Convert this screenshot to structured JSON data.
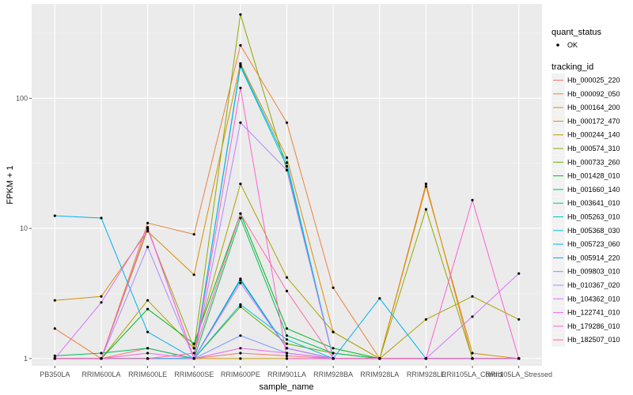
{
  "chart_data": {
    "type": "line",
    "xlabel": "sample_name",
    "ylabel": "FPKM + 1",
    "y_scale": "log10",
    "ylim": [
      0.88,
      530
    ],
    "y_ticks": [
      1,
      10,
      100
    ],
    "y_tick_labels": [
      "1",
      "10",
      "100"
    ],
    "grid": true,
    "legend_position": "right",
    "categories": [
      "PB350LA",
      "RRIM600LA",
      "RRIM600LE",
      "RRIM600SE",
      "RRIM600PE",
      "RRIM901LA",
      "RRIM928BA",
      "RRIM928LA",
      "RRIM928LE",
      "RRII105LA_Control",
      "RRII105LA_Stressed"
    ],
    "shape_legend": {
      "title": "quant_status",
      "items": [
        "OK"
      ]
    },
    "color_legend_title": "tracking_id",
    "series": [
      {
        "name": "Hb_000025_220",
        "color": "#F8766D",
        "values": [
          1.0,
          1.0,
          1.2,
          1.0,
          1.1,
          1.05,
          1.0,
          1.0,
          1.0,
          1.0,
          1.0
        ]
      },
      {
        "name": "Hb_000092_050",
        "color": "#EC8239",
        "values": [
          1.7,
          1.0,
          11.0,
          9.0,
          255,
          65,
          3.5,
          1.0,
          22,
          1.0,
          1.0
        ]
      },
      {
        "name": "Hb_000164_200",
        "color": "#DB8E00",
        "values": [
          2.8,
          3.0,
          9.5,
          4.4,
          185,
          35,
          1.6,
          1.0,
          21,
          1.1,
          1.0
        ]
      },
      {
        "name": "Hb_000172_470",
        "color": "#C79800",
        "values": [
          1.0,
          1.0,
          1.0,
          1.0,
          1.0,
          1.0,
          1.0,
          1.0,
          1.0,
          1.0,
          1.0
        ]
      },
      {
        "name": "Hb_000244_140",
        "color": "#AEA200",
        "values": [
          1.0,
          1.0,
          2.8,
          1.2,
          22,
          4.2,
          1.6,
          1.0,
          2.0,
          3.0,
          2.0
        ]
      },
      {
        "name": "Hb_000574_310",
        "color": "#8FAA00",
        "values": [
          1.0,
          1.0,
          9.8,
          1.2,
          440,
          28,
          1.0,
          1.0,
          14,
          1.0,
          1.0
        ]
      },
      {
        "name": "Hb_000733_260",
        "color": "#64B200",
        "values": [
          1.0,
          1.0,
          1.0,
          1.0,
          2.5,
          1.3,
          1.1,
          1.0,
          1.0,
          1.0,
          1.0
        ]
      },
      {
        "name": "Hb_001428_010",
        "color": "#00B81B",
        "values": [
          1.0,
          1.0,
          2.4,
          1.3,
          13,
          1.7,
          1.2,
          1.0,
          1.0,
          1.0,
          1.0
        ]
      },
      {
        "name": "Hb_001660_140",
        "color": "#00BD5C",
        "values": [
          1.05,
          1.1,
          1.2,
          1.0,
          12,
          1.5,
          1.1,
          1.0,
          1.0,
          1.0,
          1.0
        ]
      },
      {
        "name": "Hb_003641_010",
        "color": "#00C08E",
        "values": [
          1.0,
          1.0,
          1.0,
          1.0,
          4.1,
          1.2,
          1.0,
          1.0,
          1.0,
          1.0,
          1.0
        ]
      },
      {
        "name": "Hb_005263_010",
        "color": "#00BFB8",
        "values": [
          1.0,
          1.0,
          1.0,
          1.0,
          175,
          30,
          1.0,
          1.0,
          1.0,
          1.0,
          1.0
        ]
      },
      {
        "name": "Hb_005368_030",
        "color": "#00BBDB",
        "values": [
          1.0,
          1.0,
          1.0,
          1.0,
          2.6,
          1.4,
          1.0,
          1.0,
          1.0,
          1.0,
          1.0
        ]
      },
      {
        "name": "Hb_005723_060",
        "color": "#00B2F3",
        "values": [
          12.5,
          12.0,
          1.6,
          1.0,
          180,
          32,
          1.0,
          2.9,
          1.0,
          1.0,
          1.0
        ]
      },
      {
        "name": "Hb_005914_220",
        "color": "#00A5FF",
        "values": [
          1.0,
          1.0,
          1.0,
          1.0,
          4.0,
          1.2,
          1.0,
          1.0,
          1.0,
          1.0,
          1.0
        ]
      },
      {
        "name": "Hb_009803_010",
        "color": "#7997FF",
        "values": [
          1.0,
          1.0,
          1.0,
          1.0,
          1.5,
          1.1,
          1.0,
          1.0,
          1.0,
          1.0,
          1.0
        ]
      },
      {
        "name": "Hb_010367_020",
        "color": "#B385FF",
        "values": [
          1.0,
          1.0,
          7.2,
          1.0,
          65,
          28,
          1.0,
          1.0,
          1.0,
          1.0,
          1.0
        ]
      },
      {
        "name": "Hb_104362_010",
        "color": "#D874FD",
        "values": [
          1.0,
          2.7,
          10,
          1.0,
          3.8,
          1.2,
          1.0,
          1.0,
          1.0,
          2.1,
          4.5
        ]
      },
      {
        "name": "Hb_122741_010",
        "color": "#EF67EB",
        "values": [
          1.0,
          1.0,
          1.1,
          1.0,
          1.2,
          1.1,
          1.0,
          1.0,
          1.0,
          1.0,
          1.0
        ]
      },
      {
        "name": "Hb_179286_010",
        "color": "#FD61D1",
        "values": [
          1.0,
          1.0,
          10.2,
          1.0,
          120,
          1.0,
          1.0,
          1.0,
          1.0,
          16.5,
          1.0
        ]
      },
      {
        "name": "Hb_182507_010",
        "color": "#FF67A4",
        "values": [
          1.0,
          1.0,
          1.0,
          1.1,
          13,
          3.3,
          1.0,
          1.0,
          1.0,
          1.0,
          1.0
        ]
      }
    ]
  }
}
